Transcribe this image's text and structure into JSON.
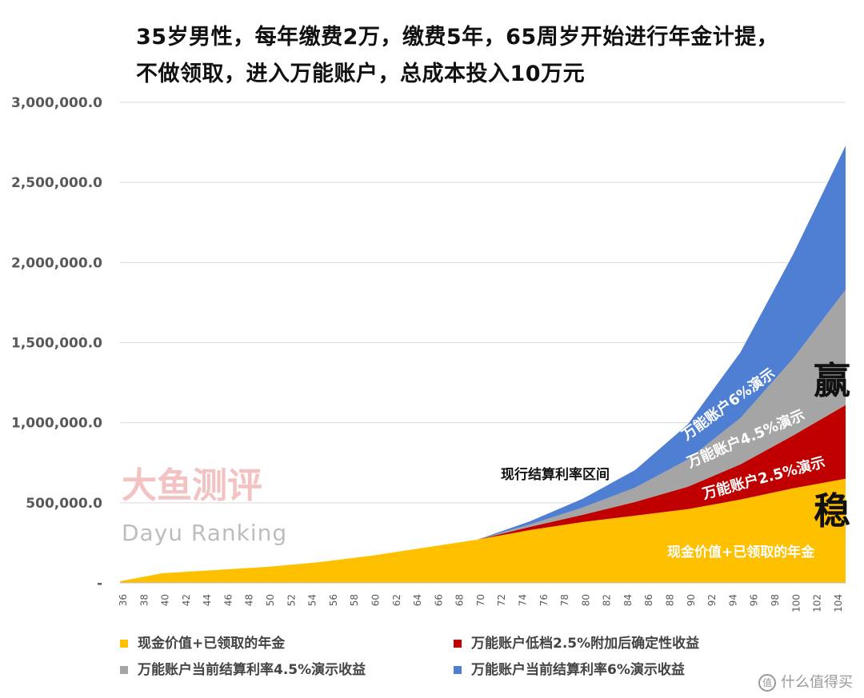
{
  "title_line1": "35岁男性，每年缴费2万，缴费5年，65周岁开始进行年金计提，",
  "title_line2": "不做领取，进入万能账户，总成本投入10万元",
  "chart_data": {
    "type": "area",
    "stacked": true,
    "ylim": [
      0,
      3000000
    ],
    "y_ticks": [
      "-",
      "500,000.0",
      "1,000,000.0",
      "1,500,000.0",
      "2,000,000.0",
      "2,500,000.0",
      "3,000,000.0"
    ],
    "x_ticks": [
      36,
      38,
      40,
      42,
      44,
      46,
      48,
      50,
      52,
      54,
      56,
      58,
      60,
      62,
      64,
      66,
      68,
      70,
      72,
      74,
      76,
      78,
      80,
      82,
      84,
      86,
      88,
      90,
      92,
      94,
      96,
      98,
      100,
      102,
      104
    ],
    "x_range": [
      36,
      105
    ],
    "grid": "horizontal",
    "legend_position": "bottom",
    "colors": {
      "cash": "#ffc000",
      "low": "#c00000",
      "mid": "#a5a5a5",
      "high": "#4f7fd2"
    },
    "x": [
      36,
      40,
      45,
      50,
      55,
      60,
      65,
      70,
      75,
      80,
      85,
      90,
      95,
      100,
      105
    ],
    "series": [
      {
        "name": "现金价值+已领取的年金",
        "values": [
          10000,
          60000,
          80000,
          100000,
          130000,
          170000,
          220000,
          270000,
          330000,
          380000,
          420000,
          460000,
          520000,
          590000,
          650000
        ]
      },
      {
        "name": "万能账户低档2.5%附加后确定性收益",
        "values": [
          0,
          0,
          0,
          0,
          0,
          0,
          0,
          0,
          20000,
          45000,
          85000,
          140000,
          220000,
          330000,
          460000
        ]
      },
      {
        "name": "万能账户当前结算利率4.5%演示收益",
        "values": [
          0,
          0,
          0,
          0,
          0,
          0,
          0,
          0,
          15000,
          45000,
          90000,
          170000,
          290000,
          480000,
          720000
        ]
      },
      {
        "name": "万能账户当前结算利率6%演示收益",
        "values": [
          0,
          0,
          0,
          0,
          0,
          0,
          0,
          0,
          20000,
          55000,
          110000,
          220000,
          410000,
          650000,
          900000
        ]
      }
    ],
    "annotations": {
      "range_label": "现行结算利率区间",
      "high_label": "万能账户6%演示",
      "mid_label": "万能账户4.5%演示",
      "low_label": "万能账户2.5%演示",
      "cash_label": "现金价值+已领取的年金",
      "win": "赢",
      "steady": "稳"
    }
  },
  "watermark": {
    "cn": "大鱼测评",
    "en": "Dayu   Ranking"
  },
  "legend": [
    {
      "label": "现金价值+已领取的年金",
      "color": "#ffc000"
    },
    {
      "label": "万能账户低档2.5%附加后确定性收益",
      "color": "#c00000"
    },
    {
      "label": "万能账户当前结算利率4.5%演示收益",
      "color": "#a5a5a5"
    },
    {
      "label": "万能账户当前结算利率6%演示收益",
      "color": "#4f7fd2"
    }
  ],
  "footer": {
    "icon": "值",
    "text": "什么值得买"
  }
}
